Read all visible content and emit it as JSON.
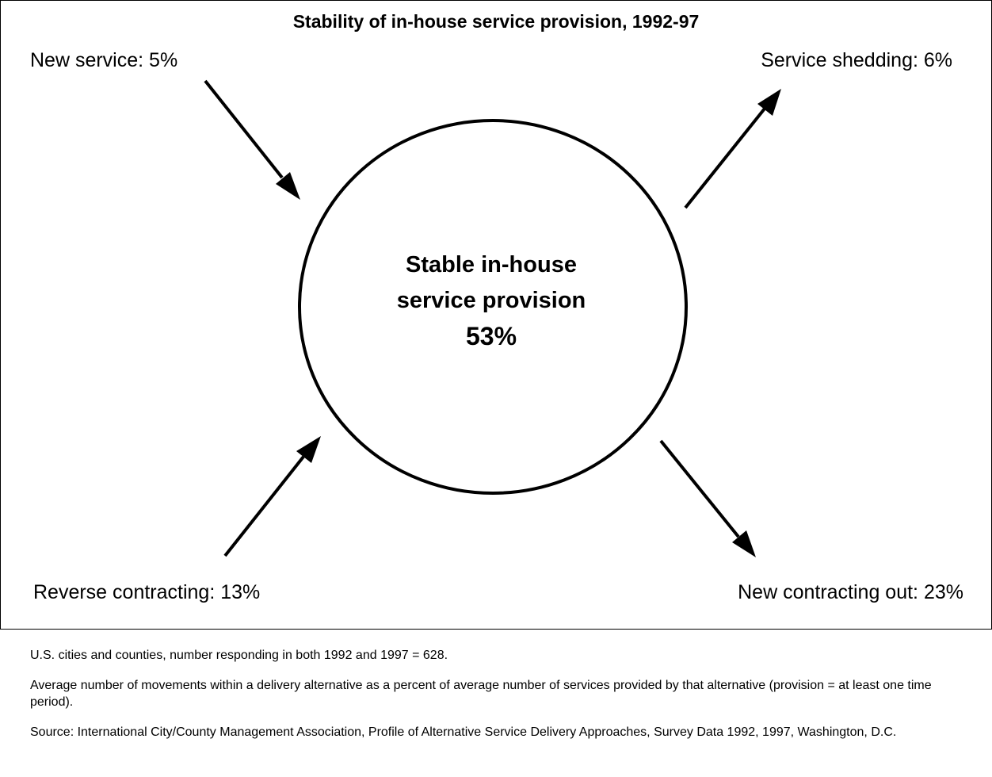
{
  "title": "Stability of in-house service provision, 1992-97",
  "center": {
    "line1": "Stable in-house",
    "line2": "service provision",
    "value": "53%"
  },
  "flows": {
    "new_service": "New service: 5%",
    "service_shedding": "Service shedding: 6%",
    "reverse_contracting": "Reverse contracting: 13%",
    "new_contracting_out": "New contracting out: 23%"
  },
  "notes": {
    "sample": "U.S. cities and counties, number responding in both 1992 and 1997 = 628.",
    "definition": "Average number of movements within a delivery alternative as a percent of average number of services provided by that alternative (provision = at least one time period).",
    "source": "Source: International City/County Management Association, Profile of Alternative Service Delivery Approaches, Survey Data 1992, 1997, Washington, D.C."
  }
}
